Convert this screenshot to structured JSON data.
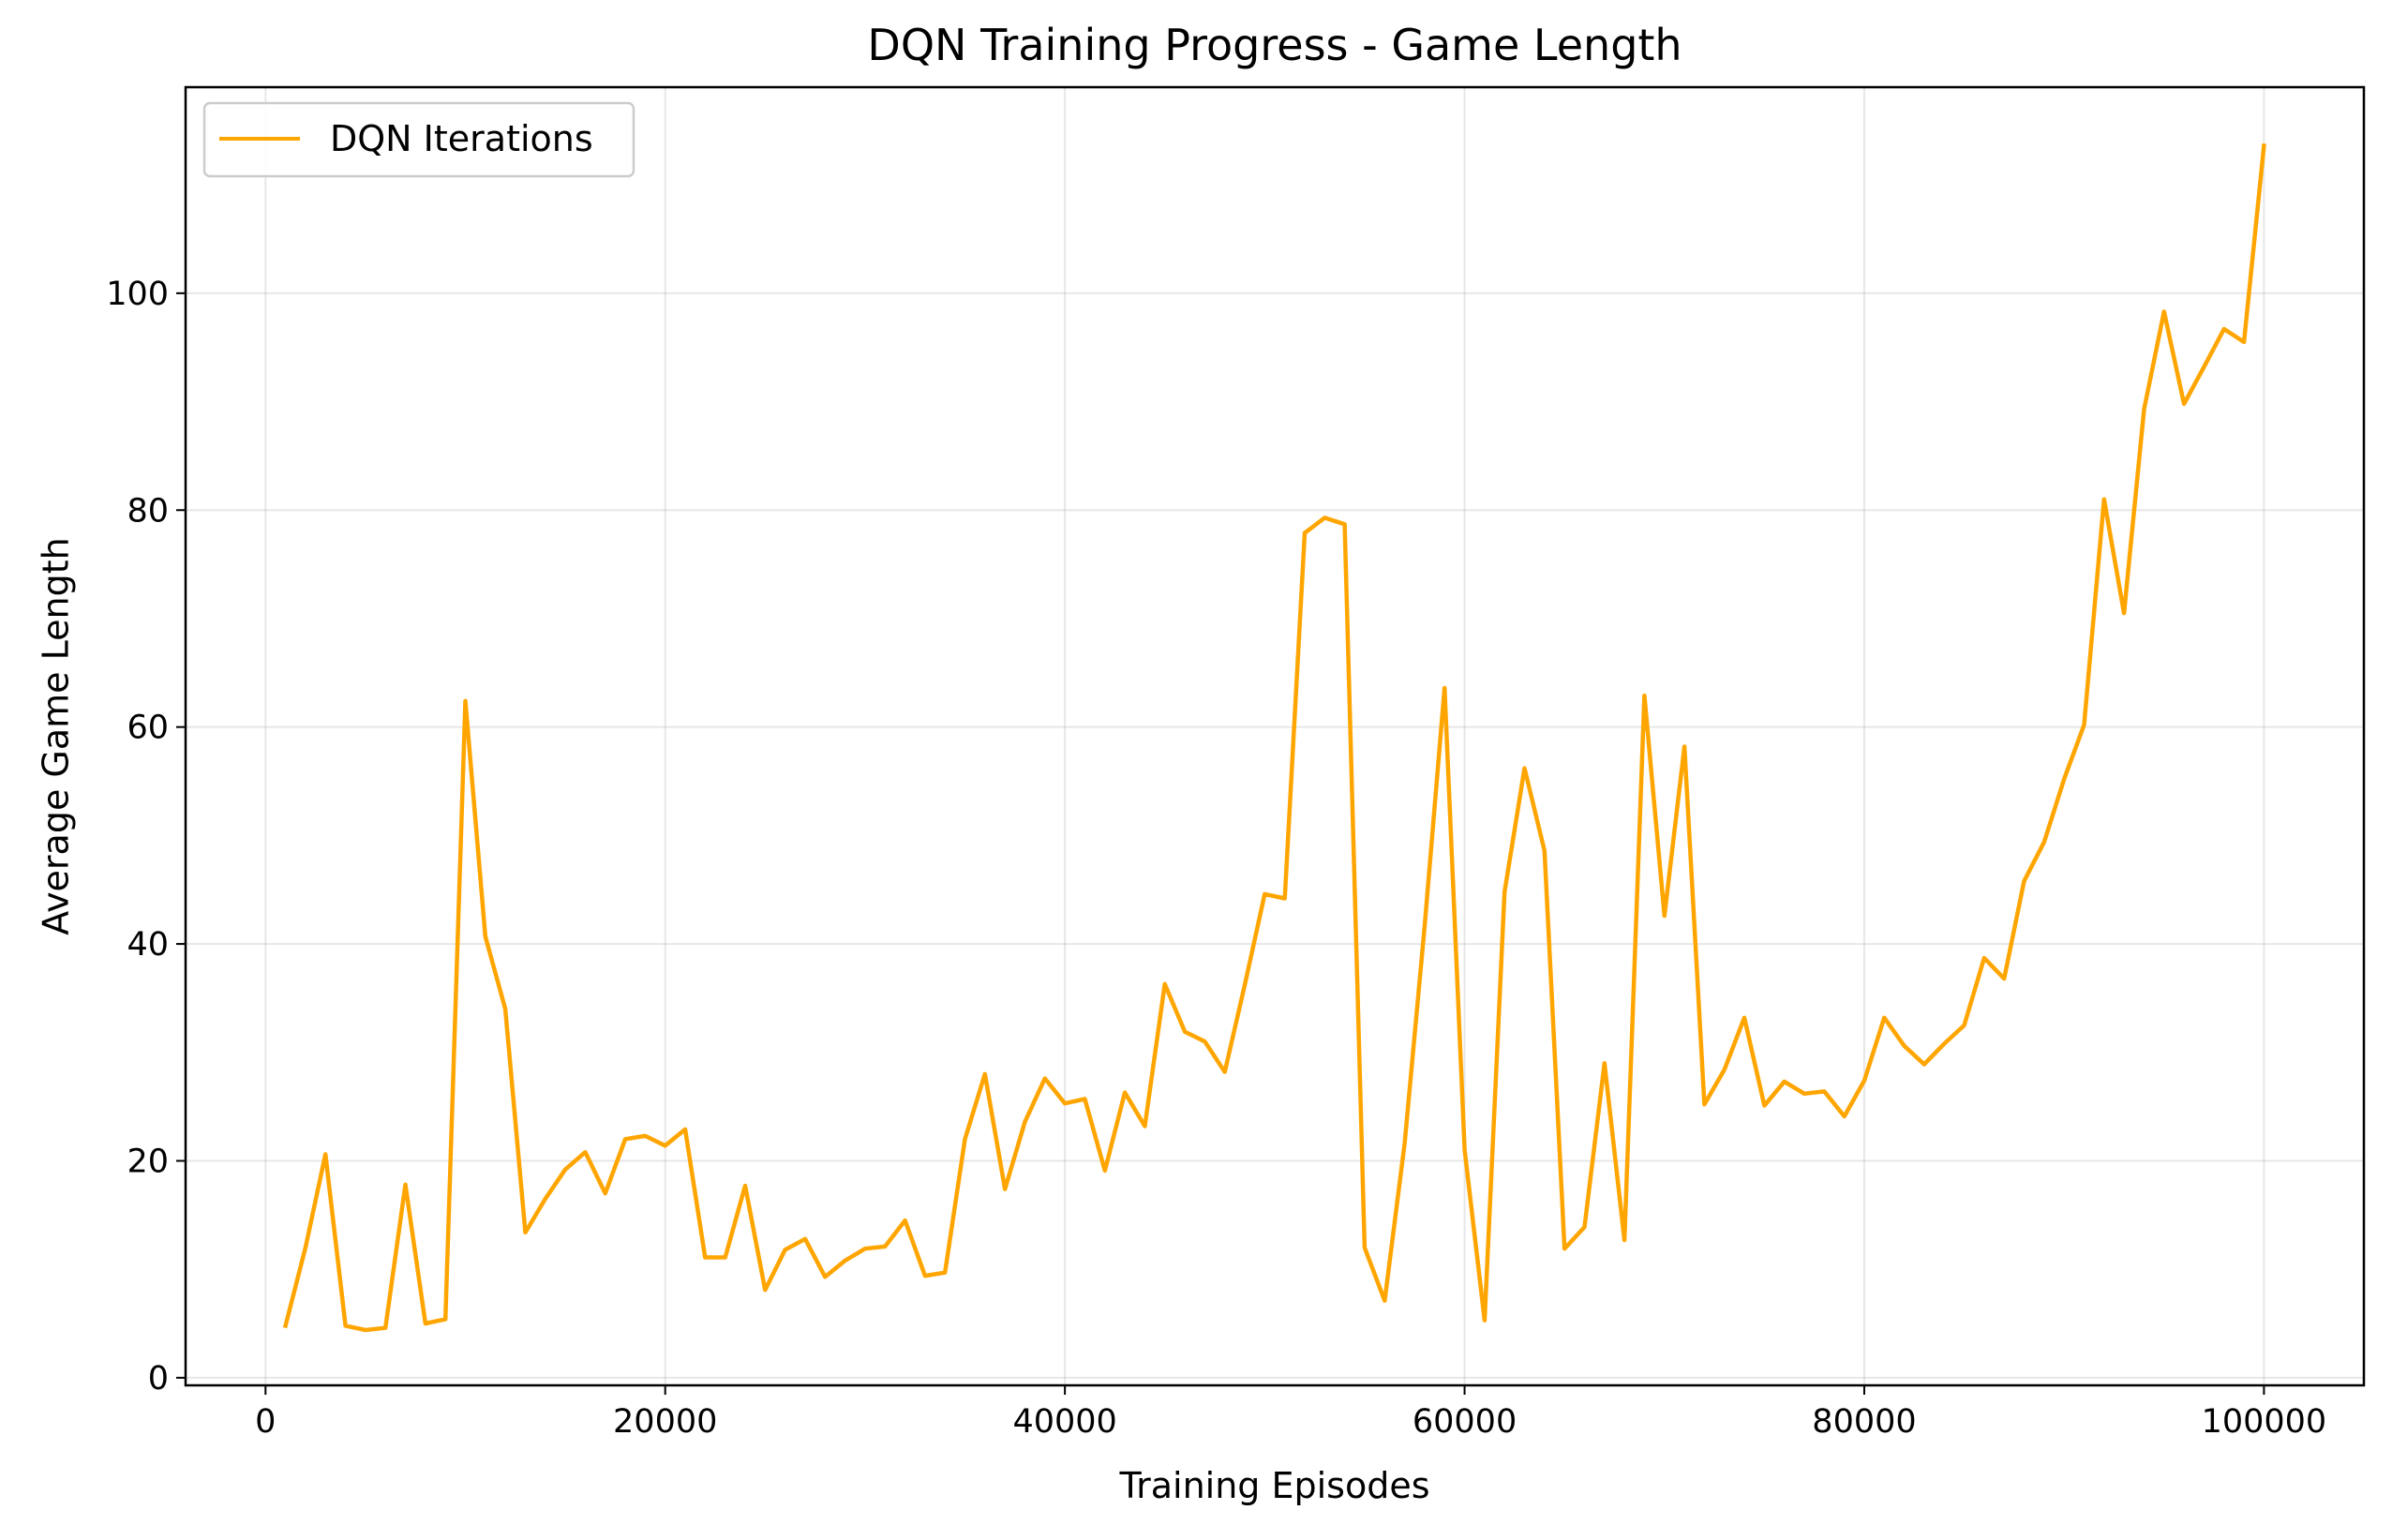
{
  "chart_data": {
    "type": "line",
    "title": "DQN Training Progress - Game Length",
    "xlabel": "Training Episodes",
    "ylabel": "Average Game Length",
    "xlim": [
      -4000,
      105000
    ],
    "ylim": [
      -0.7,
      119
    ],
    "xticks": [
      0,
      20000,
      40000,
      60000,
      80000,
      100000
    ],
    "xtick_labels": [
      "0",
      "20000",
      "40000",
      "60000",
      "80000",
      "100000"
    ],
    "yticks": [
      0,
      20,
      40,
      60,
      80,
      100
    ],
    "ytick_labels": [
      "0",
      "20",
      "40",
      "60",
      "80",
      "100"
    ],
    "grid": true,
    "legend_position": "upper-left",
    "series": [
      {
        "name": "DQN Iterations",
        "color": "#ffa500",
        "x": [
          1000,
          2000,
          3000,
          4000,
          5000,
          6000,
          7000,
          8000,
          9000,
          10000,
          11000,
          12000,
          13000,
          14000,
          15000,
          16000,
          17000,
          18000,
          19000,
          20000,
          21000,
          22000,
          23000,
          24000,
          25000,
          26000,
          27000,
          28000,
          29000,
          30000,
          31000,
          32000,
          33000,
          34000,
          35000,
          36000,
          37000,
          38000,
          39000,
          40000,
          41000,
          42000,
          43000,
          44000,
          45000,
          46000,
          47000,
          48000,
          49000,
          50000,
          51000,
          52000,
          53000,
          54000,
          55000,
          56000,
          57000,
          58000,
          59000,
          60000,
          61000,
          62000,
          63000,
          64000,
          65000,
          66000,
          67000,
          68000,
          69000,
          70000,
          71000,
          72000,
          73000,
          74000,
          75000,
          76000,
          77000,
          78000,
          79000,
          80000,
          81000,
          82000,
          83000,
          84000,
          85000,
          86000,
          87000,
          88000,
          89000,
          90000,
          91000,
          92000,
          93000,
          94000,
          95000,
          96000,
          97000,
          98000,
          99000,
          100000
        ],
        "y": [
          4.8,
          12.0,
          20.6,
          4.8,
          4.4,
          4.6,
          17.8,
          5.0,
          5.4,
          62.4,
          40.7,
          34.0,
          13.4,
          16.5,
          19.2,
          20.8,
          17.0,
          22.0,
          22.3,
          21.4,
          22.9,
          11.1,
          11.1,
          17.7,
          8.1,
          11.8,
          12.8,
          9.3,
          10.8,
          11.9,
          12.1,
          14.5,
          9.4,
          9.7,
          22.0,
          28.0,
          17.4,
          23.6,
          27.6,
          25.3,
          25.7,
          19.1,
          26.3,
          23.2,
          36.3,
          31.9,
          31.0,
          28.2,
          36.2,
          44.6,
          44.2,
          77.9,
          79.3,
          78.7,
          12.0,
          7.1,
          21.6,
          41.6,
          63.6,
          21.0,
          5.3,
          44.8,
          56.2,
          48.6,
          11.9,
          13.9,
          29.0,
          12.7,
          62.9,
          42.6,
          58.2,
          25.2,
          28.4,
          33.2,
          25.1,
          27.3,
          26.2,
          26.4,
          24.1,
          27.4,
          33.2,
          30.6,
          28.9,
          30.8,
          32.5,
          38.7,
          36.8,
          45.8,
          49.4,
          55.2,
          60.2,
          81.0,
          70.5,
          89.3,
          98.3,
          89.8,
          93.2,
          96.7,
          95.5,
          113.6
        ]
      }
    ]
  }
}
